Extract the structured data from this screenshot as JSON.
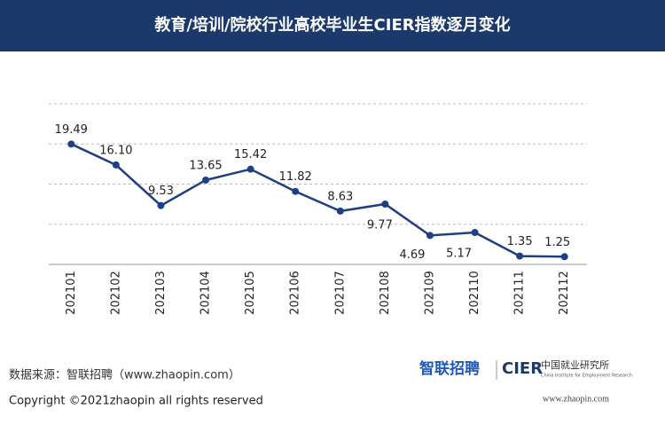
{
  "chart_data": {
    "type": "line",
    "title": "教育/培训/院校行业高校毕业生CIER指数逐月变化",
    "categories": [
      "202101",
      "202102",
      "202103",
      "202104",
      "202105",
      "202106",
      "202107",
      "202108",
      "202109",
      "202110",
      "202111",
      "202112"
    ],
    "series": [
      {
        "name": "CIER指数",
        "color": "#1f3f85",
        "values": [
          19.49,
          16.1,
          9.53,
          13.65,
          15.42,
          11.82,
          8.63,
          9.77,
          4.69,
          5.17,
          1.35,
          1.25
        ],
        "value_labels": [
          "19.49",
          "16.10",
          "9.53",
          "13.65",
          "15.42",
          "11.82",
          "8.63",
          "9.77",
          "4.69",
          "5.17",
          "1.35",
          "1.25"
        ]
      }
    ],
    "ylim": [
      0,
      26
    ],
    "yticks": [
      0,
      6.5,
      13,
      19.5,
      26
    ],
    "grid": true
  },
  "footer": {
    "source": "数据来源：智联招聘（www.zhaopin.com）",
    "copyright": "Copyright ©2021zhaopin all rights reserved",
    "logo_zhaopin": "智联招聘",
    "logo_cier": "CIER",
    "logo_cier_cn": "中国就业研究所",
    "logo_cier_en": "China Institute for Employment Research",
    "url": "www.zhaopin.com"
  }
}
